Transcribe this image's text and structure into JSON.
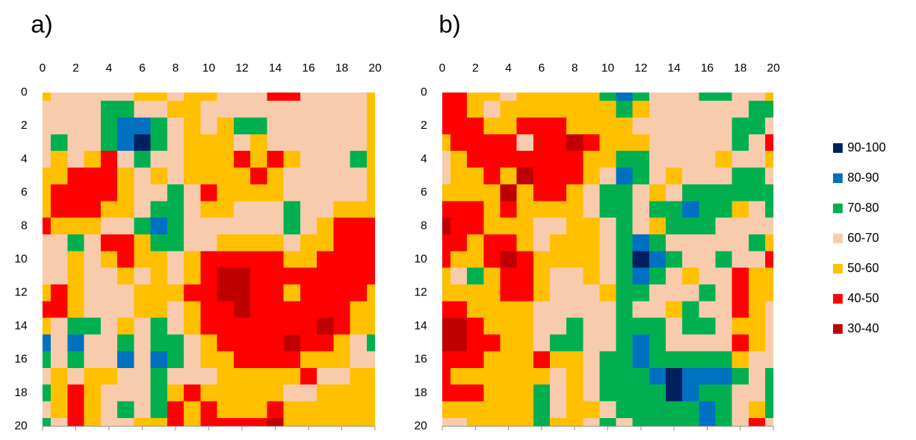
{
  "chart_data": [
    {
      "type": "contour",
      "title": "a)",
      "x": [
        0,
        1,
        2,
        3,
        4,
        5,
        6,
        7,
        8,
        9,
        10,
        11,
        12,
        13,
        14,
        15,
        16,
        17,
        18,
        19,
        20
      ],
      "y": [
        0,
        1,
        2,
        3,
        4,
        5,
        6,
        7,
        8,
        9,
        10,
        11,
        12,
        13,
        14,
        15,
        16,
        17,
        18,
        19,
        20
      ],
      "xlim": [
        0,
        20
      ],
      "ylim": [
        0,
        20
      ],
      "y_reversed": true,
      "xticks": [
        0,
        2,
        4,
        6,
        8,
        10,
        12,
        14,
        16,
        18,
        20
      ],
      "yticks": [
        0,
        2,
        4,
        6,
        8,
        10,
        12,
        14,
        16,
        18,
        20
      ],
      "z": [
        [
          55,
          65,
          65,
          65,
          65,
          65,
          55,
          55,
          65,
          55,
          55,
          65,
          65,
          65,
          45,
          45,
          65,
          65,
          65,
          65,
          55
        ],
        [
          65,
          65,
          65,
          65,
          75,
          75,
          65,
          65,
          55,
          55,
          65,
          65,
          65,
          65,
          65,
          65,
          65,
          65,
          65,
          65,
          55
        ],
        [
          65,
          65,
          65,
          65,
          75,
          85,
          85,
          75,
          65,
          55,
          65,
          55,
          75,
          75,
          65,
          65,
          65,
          65,
          65,
          65,
          55
        ],
        [
          65,
          75,
          65,
          65,
          75,
          85,
          95,
          75,
          65,
          55,
          55,
          55,
          65,
          55,
          65,
          65,
          65,
          65,
          65,
          65,
          55
        ],
        [
          65,
          55,
          65,
          55,
          45,
          65,
          75,
          65,
          65,
          55,
          55,
          55,
          45,
          55,
          45,
          55,
          65,
          65,
          65,
          75,
          55
        ],
        [
          55,
          55,
          45,
          45,
          45,
          55,
          65,
          55,
          65,
          55,
          55,
          55,
          55,
          45,
          55,
          65,
          65,
          65,
          65,
          65,
          55
        ],
        [
          55,
          45,
          45,
          45,
          45,
          55,
          65,
          65,
          75,
          65,
          45,
          55,
          55,
          55,
          55,
          65,
          65,
          65,
          65,
          65,
          55
        ],
        [
          55,
          45,
          45,
          45,
          55,
          55,
          65,
          75,
          75,
          65,
          55,
          55,
          65,
          65,
          65,
          75,
          65,
          65,
          55,
          55,
          55
        ],
        [
          45,
          55,
          55,
          55,
          65,
          65,
          75,
          85,
          75,
          65,
          65,
          65,
          65,
          65,
          65,
          75,
          65,
          55,
          45,
          45,
          45
        ],
        [
          65,
          65,
          75,
          65,
          45,
          45,
          55,
          75,
          75,
          65,
          65,
          55,
          55,
          55,
          55,
          65,
          55,
          55,
          45,
          45,
          45
        ],
        [
          65,
          65,
          55,
          65,
          55,
          45,
          55,
          55,
          65,
          55,
          45,
          45,
          45,
          45,
          45,
          55,
          55,
          45,
          45,
          45,
          45
        ],
        [
          65,
          65,
          55,
          65,
          65,
          55,
          65,
          55,
          65,
          55,
          45,
          35,
          35,
          45,
          45,
          45,
          45,
          45,
          45,
          45,
          45
        ],
        [
          55,
          45,
          55,
          65,
          65,
          65,
          55,
          55,
          55,
          45,
          45,
          35,
          35,
          45,
          45,
          55,
          45,
          45,
          45,
          45,
          55
        ],
        [
          45,
          45,
          55,
          65,
          65,
          65,
          55,
          55,
          65,
          55,
          45,
          45,
          35,
          45,
          45,
          45,
          45,
          45,
          45,
          55,
          55
        ],
        [
          55,
          65,
          75,
          75,
          65,
          55,
          65,
          75,
          65,
          55,
          45,
          45,
          45,
          45,
          45,
          45,
          45,
          35,
          45,
          55,
          55
        ],
        [
          85,
          65,
          85,
          65,
          65,
          75,
          65,
          75,
          75,
          65,
          55,
          45,
          45,
          45,
          45,
          35,
          45,
          45,
          55,
          65,
          75
        ],
        [
          75,
          65,
          75,
          65,
          65,
          85,
          65,
          85,
          75,
          65,
          55,
          55,
          45,
          45,
          45,
          45,
          55,
          55,
          55,
          65,
          65
        ],
        [
          65,
          55,
          65,
          55,
          55,
          65,
          65,
          75,
          65,
          65,
          65,
          55,
          55,
          55,
          55,
          55,
          45,
          65,
          65,
          55,
          55
        ],
        [
          75,
          55,
          45,
          55,
          65,
          65,
          65,
          75,
          55,
          45,
          55,
          55,
          55,
          55,
          55,
          65,
          65,
          55,
          55,
          55,
          55
        ],
        [
          65,
          55,
          45,
          55,
          65,
          75,
          65,
          75,
          45,
          55,
          45,
          55,
          55,
          55,
          45,
          55,
          55,
          55,
          55,
          55,
          55
        ],
        [
          75,
          65,
          45,
          55,
          65,
          65,
          55,
          55,
          45,
          55,
          45,
          45,
          45,
          45,
          35,
          55,
          55,
          55,
          55,
          55,
          55
        ]
      ]
    },
    {
      "type": "contour",
      "title": "b)",
      "x": [
        0,
        1,
        2,
        3,
        4,
        5,
        6,
        7,
        8,
        9,
        10,
        11,
        12,
        13,
        14,
        15,
        16,
        17,
        18,
        19,
        20
      ],
      "y": [
        0,
        1,
        2,
        3,
        4,
        5,
        6,
        7,
        8,
        9,
        10,
        11,
        12,
        13,
        14,
        15,
        16,
        17,
        18,
        19,
        20
      ],
      "xlim": [
        0,
        20
      ],
      "ylim": [
        0,
        20
      ],
      "y_reversed": true,
      "xticks": [
        0,
        2,
        4,
        6,
        8,
        10,
        12,
        14,
        16,
        18,
        20
      ],
      "yticks": [
        0,
        2,
        4,
        6,
        8,
        10,
        12,
        14,
        16,
        18,
        20
      ],
      "z": [
        [
          45,
          45,
          55,
          55,
          65,
          55,
          55,
          55,
          55,
          55,
          75,
          85,
          75,
          65,
          65,
          65,
          75,
          75,
          65,
          65,
          55
        ],
        [
          45,
          45,
          55,
          65,
          55,
          55,
          55,
          55,
          55,
          55,
          55,
          75,
          55,
          65,
          65,
          65,
          65,
          65,
          65,
          75,
          75
        ],
        [
          45,
          45,
          45,
          55,
          55,
          45,
          45,
          45,
          55,
          55,
          55,
          55,
          65,
          65,
          65,
          65,
          65,
          65,
          75,
          75,
          65
        ],
        [
          55,
          45,
          45,
          45,
          45,
          65,
          45,
          45,
          35,
          45,
          55,
          55,
          55,
          65,
          65,
          65,
          65,
          65,
          75,
          65,
          45
        ],
        [
          65,
          55,
          45,
          45,
          45,
          45,
          45,
          45,
          45,
          55,
          55,
          75,
          75,
          65,
          65,
          65,
          65,
          55,
          65,
          65,
          55
        ],
        [
          65,
          55,
          55,
          45,
          55,
          35,
          45,
          45,
          45,
          55,
          65,
          85,
          75,
          65,
          55,
          65,
          65,
          65,
          75,
          75,
          65
        ],
        [
          55,
          55,
          55,
          55,
          35,
          55,
          45,
          45,
          55,
          65,
          75,
          75,
          65,
          55,
          65,
          75,
          75,
          75,
          75,
          75,
          75
        ],
        [
          45,
          45,
          45,
          55,
          45,
          55,
          55,
          55,
          55,
          65,
          75,
          75,
          65,
          75,
          75,
          85,
          75,
          75,
          55,
          65,
          75
        ],
        [
          35,
          45,
          45,
          55,
          55,
          55,
          65,
          65,
          55,
          55,
          65,
          75,
          65,
          55,
          75,
          75,
          75,
          65,
          65,
          65,
          65
        ],
        [
          45,
          45,
          55,
          45,
          45,
          55,
          65,
          55,
          55,
          55,
          65,
          75,
          85,
          75,
          65,
          65,
          65,
          65,
          65,
          75,
          55
        ],
        [
          45,
          55,
          55,
          45,
          35,
          45,
          55,
          55,
          55,
          55,
          65,
          75,
          95,
          85,
          75,
          65,
          65,
          75,
          65,
          65,
          45
        ],
        [
          55,
          65,
          75,
          55,
          45,
          45,
          55,
          65,
          65,
          55,
          65,
          75,
          85,
          75,
          65,
          55,
          65,
          65,
          45,
          55,
          55
        ],
        [
          55,
          55,
          55,
          55,
          45,
          45,
          55,
          65,
          65,
          65,
          55,
          75,
          75,
          65,
          65,
          65,
          75,
          65,
          45,
          55,
          55
        ],
        [
          45,
          45,
          55,
          55,
          55,
          55,
          65,
          65,
          65,
          65,
          65,
          75,
          65,
          65,
          55,
          75,
          65,
          65,
          45,
          55,
          65
        ],
        [
          35,
          35,
          45,
          55,
          55,
          55,
          65,
          65,
          75,
          65,
          65,
          75,
          75,
          75,
          65,
          75,
          75,
          65,
          55,
          55,
          65
        ],
        [
          35,
          35,
          45,
          45,
          55,
          55,
          65,
          75,
          75,
          65,
          65,
          75,
          85,
          75,
          65,
          65,
          65,
          65,
          45,
          55,
          65
        ],
        [
          45,
          45,
          45,
          55,
          55,
          55,
          45,
          55,
          55,
          65,
          75,
          75,
          85,
          75,
          75,
          75,
          75,
          75,
          55,
          65,
          65
        ],
        [
          45,
          55,
          55,
          55,
          55,
          55,
          55,
          65,
          55,
          65,
          75,
          75,
          75,
          85,
          95,
          85,
          85,
          85,
          75,
          65,
          75
        ],
        [
          45,
          45,
          45,
          55,
          55,
          55,
          75,
          65,
          55,
          65,
          75,
          75,
          75,
          75,
          95,
          85,
          75,
          75,
          65,
          65,
          75
        ],
        [
          55,
          55,
          55,
          55,
          55,
          55,
          75,
          65,
          55,
          55,
          65,
          75,
          75,
          75,
          75,
          75,
          85,
          75,
          65,
          55,
          75
        ],
        [
          65,
          65,
          55,
          55,
          55,
          55,
          75,
          55,
          55,
          65,
          75,
          65,
          75,
          75,
          75,
          75,
          85,
          75,
          65,
          45,
          65
        ]
      ]
    }
  ],
  "legend": {
    "entries": [
      {
        "label": "90-100",
        "color": "#002060",
        "min": 90,
        "max": 100
      },
      {
        "label": "80-90",
        "color": "#0070c0",
        "min": 80,
        "max": 90
      },
      {
        "label": "70-80",
        "color": "#00b050",
        "min": 70,
        "max": 80
      },
      {
        "label": "60-70",
        "color": "#f8cbad",
        "min": 60,
        "max": 70
      },
      {
        "label": "50-60",
        "color": "#ffc000",
        "min": 50,
        "max": 60
      },
      {
        "label": "40-50",
        "color": "#ff0000",
        "min": 40,
        "max": 50
      },
      {
        "label": "30-40",
        "color": "#c00000",
        "min": 30,
        "max": 40
      }
    ]
  }
}
